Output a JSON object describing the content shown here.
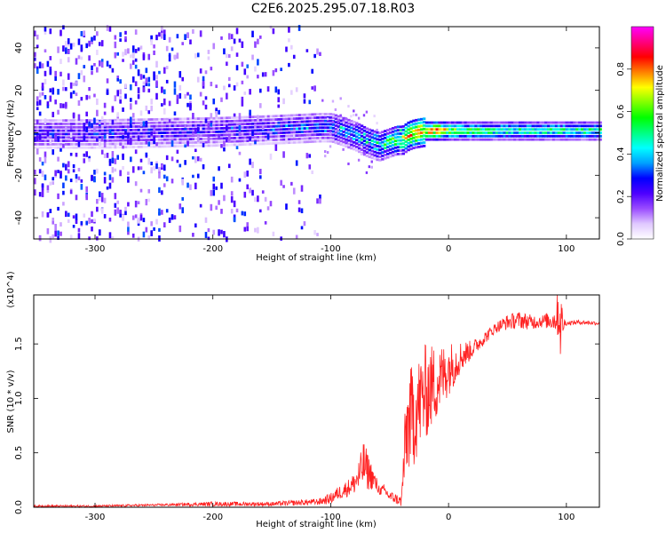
{
  "title": "C2E6.2025.295.07.18.R03",
  "chart_data": [
    {
      "type": "heatmap",
      "title": "C2E6.2025.295.07.18.R03",
      "xlabel": "Height of straight line (km)",
      "ylabel": "Frequency (Hz)",
      "xlim": [
        -352,
        128
      ],
      "ylim": [
        -50,
        50
      ],
      "xticks": [
        -300,
        -200,
        -100,
        0,
        100
      ],
      "yticks": [
        -40,
        -20,
        0,
        20,
        40
      ],
      "colorbar": {
        "label": "Normalized spectral amplitude",
        "range": [
          0,
          1
        ],
        "ticks": [
          "0.0",
          "0.2",
          "0.4",
          "0.6",
          "0.8"
        ],
        "tick_values": [
          0,
          0.2,
          0.4,
          0.6,
          0.8
        ],
        "colormap": [
          "#ffffff",
          "#e0c8ff",
          "#9a4cff",
          "#4d00ff",
          "#0000ff",
          "#00a0ff",
          "#00ffff",
          "#00ff80",
          "#00ff00",
          "#80ff00",
          "#ffff00",
          "#ff8000",
          "#ff0000",
          "#ff0080",
          "#ff00ff"
        ]
      },
      "signal_track": {
        "x": [
          -352,
          -300,
          -250,
          -200,
          -150,
          -110,
          -100,
          -90,
          -80,
          -70,
          -60,
          -55,
          -50,
          -45,
          -40,
          -35,
          -30,
          -25,
          -20,
          -15,
          -10,
          0,
          20,
          50,
          100,
          128
        ],
        "y": [
          0,
          0,
          0.5,
          1,
          2,
          3,
          3,
          1,
          -1,
          -4,
          -6,
          -5,
          -4,
          -3,
          -3,
          -1,
          0,
          0.5,
          1,
          1,
          1,
          1,
          1,
          1,
          1,
          1
        ],
        "amplitude": [
          0.3,
          0.3,
          0.3,
          0.3,
          0.35,
          0.4,
          0.4,
          0.45,
          0.5,
          0.55,
          0.5,
          0.6,
          0.65,
          0.7,
          0.75,
          0.8,
          0.85,
          0.85,
          0.9,
          0.9,
          0.95,
          0.7,
          0.6,
          0.55,
          0.55,
          0.55
        ]
      }
    },
    {
      "type": "line",
      "xlabel": "Height of straight line (km)",
      "ylabel": "SNR (10 * v/v)",
      "multiplier": "(x10^4)",
      "xlim": [
        -352,
        128
      ],
      "ylim": [
        0,
        1.95
      ],
      "xticks": [
        -300,
        -200,
        -100,
        0,
        100
      ],
      "yticks": [
        0.0,
        0.5,
        1.0,
        1.5
      ],
      "ytick_labels": [
        "0.0",
        "0.5",
        "1.0",
        "1.5"
      ],
      "color": "#ff2020",
      "series": [
        {
          "name": "SNR",
          "x": [
            -352,
            -300,
            -250,
            -200,
            -150,
            -110,
            -100,
            -95,
            -90,
            -85,
            -80,
            -75,
            -72,
            -70,
            -65,
            -60,
            -58,
            -55,
            -50,
            -45,
            -40,
            -38,
            -35,
            -30,
            -25,
            -20,
            -15,
            -10,
            -5,
            0,
            5,
            10,
            20,
            30,
            40,
            50,
            60,
            70,
            80,
            90,
            93,
            95,
            97,
            100,
            110,
            128
          ],
          "y": [
            0.01,
            0.01,
            0.02,
            0.03,
            0.03,
            0.05,
            0.08,
            0.12,
            0.15,
            0.18,
            0.22,
            0.3,
            0.4,
            0.35,
            0.28,
            0.18,
            0.15,
            0.16,
            0.1,
            0.08,
            0.05,
            0.4,
            0.75,
            0.85,
            0.95,
            1.05,
            1.1,
            1.15,
            1.2,
            1.28,
            1.32,
            1.38,
            1.45,
            1.55,
            1.65,
            1.7,
            1.72,
            1.7,
            1.71,
            1.72,
            1.8,
            1.7,
            1.68,
            1.69,
            1.7,
            1.69
          ],
          "spread": [
            0.01,
            0.01,
            0.01,
            0.02,
            0.02,
            0.03,
            0.05,
            0.06,
            0.07,
            0.08,
            0.1,
            0.18,
            0.22,
            0.2,
            0.12,
            0.06,
            0.04,
            0.05,
            0.05,
            0.05,
            0.05,
            0.3,
            0.45,
            0.5,
            0.45,
            0.45,
            0.4,
            0.35,
            0.3,
            0.25,
            0.2,
            0.15,
            0.08,
            0.06,
            0.05,
            0.07,
            0.08,
            0.07,
            0.06,
            0.1,
            0.25,
            0.35,
            0.1,
            0.02,
            0.02,
            0.02
          ]
        }
      ]
    }
  ]
}
